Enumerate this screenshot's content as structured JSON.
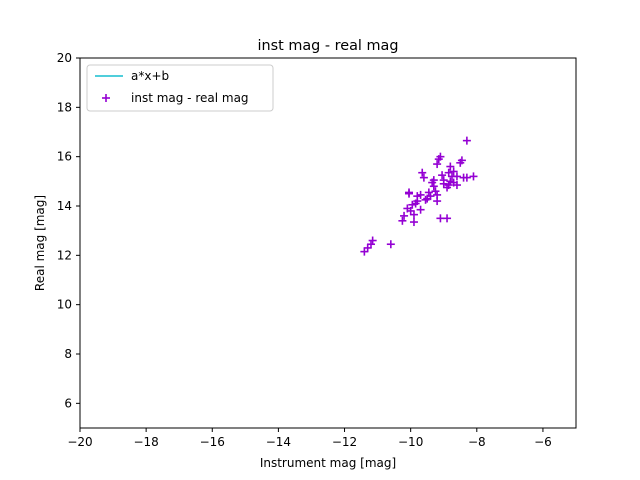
{
  "chart_data": {
    "type": "scatter",
    "title": "inst mag - real mag",
    "xlabel": "Instrument mag [mag]",
    "ylabel": "Real mag [mag]",
    "xlim": [
      -20,
      -5
    ],
    "ylim": [
      5,
      20
    ],
    "xticks": [
      -20,
      -18,
      -16,
      -14,
      -12,
      -10,
      -8,
      -6
    ],
    "yticks": [
      6,
      8,
      10,
      12,
      14,
      16,
      18,
      20
    ],
    "xtick_labels": [
      "−20",
      "−18",
      "−16",
      "−14",
      "−12",
      "−10",
      "−8",
      "−6"
    ],
    "ytick_labels": [
      "6",
      "8",
      "10",
      "12",
      "14",
      "16",
      "18",
      "20"
    ],
    "grid": false,
    "legend_position": "top-left",
    "legend": [
      {
        "label": "a*x+b",
        "kind": "line",
        "color": "#17becf"
      },
      {
        "label": "inst mag - real mag",
        "kind": "marker",
        "marker": "+",
        "color": "#9400d3"
      }
    ],
    "series": [
      {
        "name": "inst mag - real mag",
        "marker": "+",
        "color": "#9400d3",
        "x": [
          -11.4,
          -11.3,
          -11.2,
          -11.15,
          -10.6,
          -10.25,
          -10.2,
          -10.1,
          -10.05,
          -10.0,
          -9.95,
          -9.9,
          -9.9,
          -9.8,
          -9.8,
          -9.7,
          -9.7,
          -9.65,
          -9.6,
          -9.5,
          -9.45,
          -9.4,
          -9.35,
          -9.3,
          -9.3,
          -9.25,
          -9.2,
          -9.2,
          -9.15,
          -9.1,
          -9.1,
          -9.05,
          -9.0,
          -9.0,
          -8.9,
          -8.9,
          -8.85,
          -8.85,
          -8.8,
          -8.75,
          -8.7,
          -8.7,
          -8.6,
          -8.6,
          -8.5,
          -8.45,
          -8.4,
          -8.3,
          -8.3,
          -8.1,
          -10.05,
          -9.85,
          -9.55,
          -9.2,
          -8.8
        ],
        "y": [
          12.15,
          12.3,
          12.45,
          12.6,
          12.45,
          13.4,
          13.6,
          13.9,
          14.55,
          13.8,
          14.05,
          13.65,
          13.35,
          14.4,
          14.2,
          14.45,
          13.85,
          15.35,
          15.15,
          14.3,
          14.55,
          14.4,
          14.95,
          14.8,
          15.05,
          14.6,
          15.7,
          14.2,
          15.9,
          16.0,
          13.5,
          15.25,
          14.9,
          15.05,
          13.5,
          14.75,
          15.35,
          14.85,
          15.6,
          15.2,
          14.95,
          15.4,
          15.2,
          14.85,
          15.75,
          15.85,
          15.15,
          16.65,
          15.15,
          15.2,
          14.5,
          14.1,
          14.25,
          14.45,
          15.0
        ]
      }
    ],
    "fit_line": {
      "label": "a*x+b",
      "color": "#17becf"
    }
  }
}
